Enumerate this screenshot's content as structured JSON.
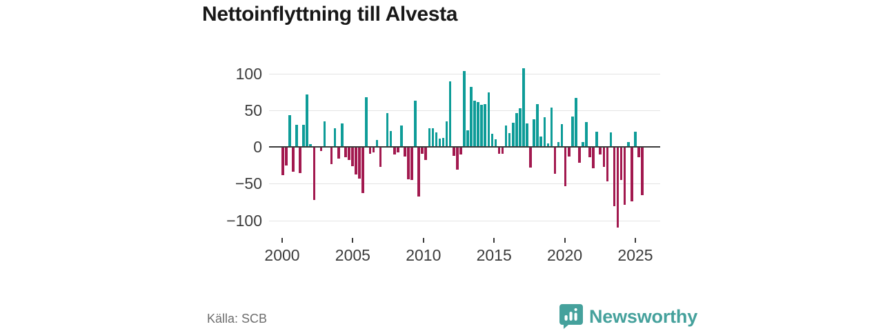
{
  "title": "Nettoinflyttning till Alvesta",
  "source": "Källa: SCB",
  "brand": {
    "name": "Newsworthy",
    "color": "#45a19c"
  },
  "chart_data": {
    "type": "bar",
    "title": "Nettoinflyttning till Alvesta",
    "frequency": "quarterly",
    "x_start": "2000-Q1",
    "x_end": "2025-Q4",
    "values": [
      -38,
      -24,
      42,
      -33,
      29,
      -35,
      29,
      70,
      3,
      -71,
      0,
      -5,
      34,
      0,
      -23,
      24,
      -15,
      31,
      -13,
      -17,
      -25,
      -37,
      -42,
      -62,
      67,
      -8,
      -7,
      8,
      -26,
      0,
      45,
      21,
      -9,
      -7,
      28,
      -12,
      -43,
      -44,
      62,
      -67,
      -8,
      -17,
      24,
      24,
      19,
      10,
      11,
      34,
      88,
      -11,
      -30,
      -9,
      102,
      22,
      81,
      62,
      60,
      56,
      57,
      73,
      17,
      9,
      -8,
      -8,
      28,
      18,
      32,
      45,
      52,
      106,
      31,
      -27,
      37,
      57,
      13,
      39,
      4,
      53,
      -36,
      6,
      30,
      -53,
      -12,
      40,
      66,
      -21,
      6,
      33,
      -13,
      -28,
      20,
      -9,
      -26,
      -46,
      19,
      -80,
      -109,
      -44,
      -78,
      6,
      -73,
      20,
      -13,
      -65
    ],
    "y_ticks": [
      100,
      50,
      0,
      -50,
      -100
    ],
    "x_ticks": [
      2000,
      2005,
      2010,
      2015,
      2020,
      2025
    ],
    "ylim": [
      -120,
      115
    ],
    "grid": "horizontal",
    "legend": "none",
    "colors": {
      "positive": "#0e9c98",
      "negative": "#a2194f"
    }
  }
}
